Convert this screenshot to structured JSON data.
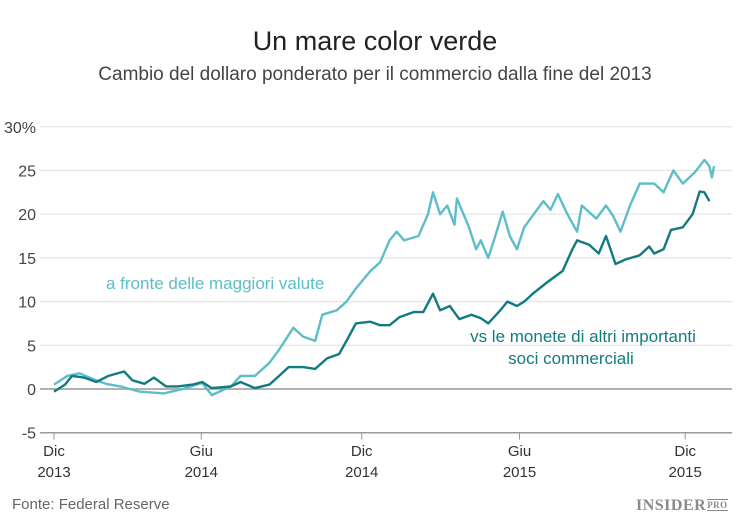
{
  "chart_data": {
    "type": "line",
    "title": "Un mare color verde",
    "subtitle": "Cambio del dollaro ponderato per il commercio dalla fine del 2013",
    "xlabel": "",
    "ylabel": "",
    "x_unit": "months since Dec 2013",
    "ylim": [
      -5,
      30
    ],
    "yticks": [
      {
        "v": 30,
        "label": "30%"
      },
      {
        "v": 25,
        "label": "25"
      },
      {
        "v": 20,
        "label": "20"
      },
      {
        "v": 15,
        "label": "15"
      },
      {
        "v": 10,
        "label": "10"
      },
      {
        "v": 5,
        "label": "5"
      },
      {
        "v": 0,
        "label": "0"
      },
      {
        "v": -5,
        "label": "-5"
      }
    ],
    "xticks": [
      {
        "m": 0,
        "l1": "Dic",
        "l2": "2013"
      },
      {
        "m": 5.6,
        "l1": "Giu",
        "l2": "2014"
      },
      {
        "m": 11.7,
        "l1": "Dic",
        "l2": "2014"
      },
      {
        "m": 17.7,
        "l1": "Giu",
        "l2": "2015"
      },
      {
        "m": 24,
        "l1": "Dic",
        "l2": "2015"
      }
    ],
    "grid": true,
    "series": [
      {
        "name": "a fronte delle maggiori valute",
        "color": "#5dbdc9",
        "x": [
          0,
          0.51,
          0.97,
          1.43,
          1.97,
          2.52,
          3.25,
          4.17,
          4.9,
          5.63,
          6.0,
          6.73,
          7.09,
          7.64,
          8.19,
          8.56,
          9.1,
          9.47,
          9.93,
          10.2,
          10.75,
          11.12,
          11.48,
          12.03,
          12.4,
          12.76,
          13.03,
          13.31,
          13.86,
          14.22,
          14.41,
          14.68,
          14.95,
          15.23,
          15.32,
          15.78,
          16.05,
          16.23,
          16.51,
          16.78,
          17.06,
          17.33,
          17.6,
          17.88,
          18.24,
          18.61,
          18.88,
          19.16,
          19.52,
          19.89,
          20.07,
          20.62,
          20.99,
          21.26,
          21.54,
          21.9,
          22.27,
          22.82,
          23.18,
          23.55,
          23.91,
          24.37,
          24.73,
          24.92,
          25.01,
          25.1
        ],
        "y": [
          0.5,
          1.5,
          1.8,
          1.2,
          0.6,
          0.3,
          -0.3,
          -0.5,
          0,
          0.7,
          -0.7,
          0.3,
          1.5,
          1.5,
          3,
          4.5,
          7,
          6,
          5.5,
          8.5,
          9,
          10,
          11.5,
          13.5,
          14.5,
          17,
          18,
          17,
          17.5,
          20,
          22.5,
          20,
          21,
          18.8,
          21.8,
          18.5,
          16,
          17,
          15,
          17.5,
          20.3,
          17.5,
          16,
          18.5,
          20,
          21.5,
          20.5,
          22.3,
          20,
          18,
          21,
          19.5,
          21,
          19.8,
          18,
          21,
          23.5,
          23.5,
          22.5,
          25,
          23.5,
          24.8,
          26.2,
          25.5,
          24.2,
          25.5
        ]
      },
      {
        "name": "vs le monete di altri importanti soci commerciali",
        "color": "#137b80",
        "x": [
          0,
          0.42,
          0.69,
          1.15,
          1.61,
          2.07,
          2.67,
          2.98,
          3.44,
          3.8,
          4.26,
          4.72,
          5.27,
          5.63,
          6.0,
          6.73,
          7.09,
          7.64,
          8.19,
          8.56,
          8.92,
          9.47,
          9.93,
          10.38,
          10.84,
          11.12,
          11.48,
          12.03,
          12.4,
          12.76,
          13.13,
          13.67,
          14.04,
          14.41,
          14.68,
          15.05,
          15.41,
          15.87,
          16.23,
          16.51,
          16.97,
          17.24,
          17.6,
          17.88,
          18.24,
          18.79,
          19.34,
          19.71,
          19.89,
          20.35,
          20.71,
          20.99,
          21.35,
          21.72,
          22.27,
          22.63,
          22.82,
          23.18,
          23.46,
          23.91,
          24.28,
          24.55,
          24.73,
          24.92
        ],
        "y": [
          -0.3,
          0.5,
          1.5,
          1.3,
          0.8,
          1.5,
          2,
          1,
          0.6,
          1.3,
          0.3,
          0.3,
          0.5,
          0.8,
          0.1,
          0.3,
          0.8,
          0.1,
          0.5,
          1.5,
          2.5,
          2.5,
          2.3,
          3.5,
          4,
          5.5,
          7.5,
          7.7,
          7.3,
          7.3,
          8.2,
          8.8,
          8.8,
          10.9,
          9,
          9.5,
          8,
          8.5,
          8.1,
          7.5,
          9,
          10,
          9.5,
          10,
          11,
          12.3,
          13.5,
          16,
          17,
          16.5,
          15.5,
          17.5,
          14.3,
          14.8,
          15.3,
          16.3,
          15.5,
          16,
          18.2,
          18.5,
          20,
          22.6,
          22.5,
          21.5
        ]
      }
    ],
    "annotations": {
      "major": "a fronte delle maggiori valute",
      "others_line1": "vs le monete di altri importanti",
      "others_line2": "soci commerciali"
    },
    "legend": "inline labels"
  },
  "footer": {
    "source": "Fonte: Federal Reserve",
    "logo": "INSIDER",
    "logo_sup": "PRO"
  }
}
